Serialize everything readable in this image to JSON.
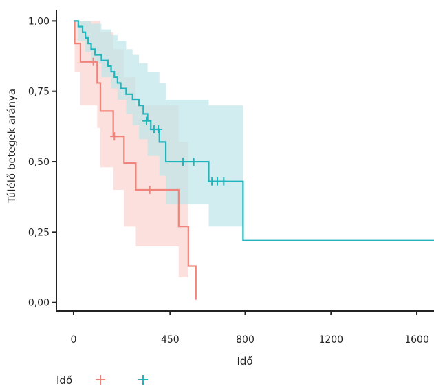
{
  "chart_data": {
    "type": "line",
    "subtype": "kaplan-meier-survival",
    "title": "",
    "xlabel": "Idő",
    "ylabel": "Túlélő betegek aránya",
    "xlim": [
      -80,
      1680
    ],
    "ylim": [
      -0.03,
      1.04
    ],
    "x_ticks": [
      0,
      450,
      800,
      1200,
      1600
    ],
    "x_tick_labels": [
      "0",
      "450",
      "800",
      "1200",
      "1600"
    ],
    "y_ticks": [
      0,
      0.25,
      0.5,
      0.75,
      1.0
    ],
    "y_tick_labels": [
      "0,00",
      "0,25",
      "0,50",
      "0,75",
      "1,00"
    ],
    "grid": false,
    "legend": {
      "title": "Idő",
      "placement": "bottom-left",
      "entries": [
        {
          "symbol": "+",
          "color": "#F0837A"
        },
        {
          "symbol": "+",
          "color": "#1FB5BC"
        }
      ]
    },
    "series": [
      {
        "color": "#F0837A",
        "band_color": "#FBD3CF",
        "steps": [
          {
            "x": 0,
            "y": 1.0
          },
          {
            "x": 5,
            "y": 0.92
          },
          {
            "x": 32,
            "y": 0.855
          },
          {
            "x": 110,
            "y": 0.78
          },
          {
            "x": 125,
            "y": 0.68
          },
          {
            "x": 185,
            "y": 0.59
          },
          {
            "x": 235,
            "y": 0.495
          },
          {
            "x": 290,
            "y": 0.4
          },
          {
            "x": 490,
            "y": 0.27
          },
          {
            "x": 535,
            "y": 0.13
          },
          {
            "x": 570,
            "y": 0.01
          }
        ],
        "end_x": 570,
        "band": [
          {
            "x": 0,
            "lo": 1.0,
            "hi": 1.0
          },
          {
            "x": 5,
            "lo": 0.82,
            "hi": 1.0
          },
          {
            "x": 32,
            "lo": 0.7,
            "hi": 1.0
          },
          {
            "x": 110,
            "lo": 0.62,
            "hi": 1.0
          },
          {
            "x": 125,
            "lo": 0.48,
            "hi": 0.96
          },
          {
            "x": 185,
            "lo": 0.4,
            "hi": 0.9
          },
          {
            "x": 235,
            "lo": 0.27,
            "hi": 0.8
          },
          {
            "x": 290,
            "lo": 0.2,
            "hi": 0.7
          },
          {
            "x": 490,
            "lo": 0.09,
            "hi": 0.57
          },
          {
            "x": 535,
            "lo": 0.09,
            "hi": 0.57
          }
        ],
        "band_end_x": 535,
        "censored": [
          {
            "x": 92,
            "y": 0.855
          },
          {
            "x": 190,
            "y": 0.59
          },
          {
            "x": 355,
            "y": 0.4
          }
        ]
      },
      {
        "color": "#1FB5BC",
        "band_color": "#BFE6E8",
        "steps": [
          {
            "x": 0,
            "y": 1.0
          },
          {
            "x": 22,
            "y": 0.98
          },
          {
            "x": 42,
            "y": 0.96
          },
          {
            "x": 55,
            "y": 0.94
          },
          {
            "x": 68,
            "y": 0.92
          },
          {
            "x": 82,
            "y": 0.9
          },
          {
            "x": 100,
            "y": 0.88
          },
          {
            "x": 130,
            "y": 0.86
          },
          {
            "x": 160,
            "y": 0.84
          },
          {
            "x": 175,
            "y": 0.82
          },
          {
            "x": 190,
            "y": 0.8
          },
          {
            "x": 205,
            "y": 0.78
          },
          {
            "x": 220,
            "y": 0.76
          },
          {
            "x": 245,
            "y": 0.74
          },
          {
            "x": 275,
            "y": 0.72
          },
          {
            "x": 305,
            "y": 0.7
          },
          {
            "x": 325,
            "y": 0.67
          },
          {
            "x": 345,
            "y": 0.645
          },
          {
            "x": 360,
            "y": 0.615
          },
          {
            "x": 400,
            "y": 0.57
          },
          {
            "x": 430,
            "y": 0.5
          },
          {
            "x": 630,
            "y": 0.43
          },
          {
            "x": 790,
            "y": 0.22
          }
        ],
        "end_x": 1680,
        "band": [
          {
            "x": 0,
            "lo": 1.0,
            "hi": 1.0
          },
          {
            "x": 22,
            "lo": 0.93,
            "hi": 1.0
          },
          {
            "x": 55,
            "lo": 0.89,
            "hi": 1.0
          },
          {
            "x": 82,
            "lo": 0.85,
            "hi": 0.99
          },
          {
            "x": 130,
            "lo": 0.8,
            "hi": 0.97
          },
          {
            "x": 175,
            "lo": 0.76,
            "hi": 0.95
          },
          {
            "x": 205,
            "lo": 0.72,
            "hi": 0.93
          },
          {
            "x": 245,
            "lo": 0.67,
            "hi": 0.9
          },
          {
            "x": 275,
            "lo": 0.63,
            "hi": 0.88
          },
          {
            "x": 305,
            "lo": 0.58,
            "hi": 0.85
          },
          {
            "x": 345,
            "lo": 0.52,
            "hi": 0.82
          },
          {
            "x": 400,
            "lo": 0.45,
            "hi": 0.78
          },
          {
            "x": 430,
            "lo": 0.35,
            "hi": 0.72
          },
          {
            "x": 630,
            "lo": 0.27,
            "hi": 0.7
          }
        ],
        "band_end_x": 790,
        "censored": [
          {
            "x": 340,
            "y": 0.645
          },
          {
            "x": 375,
            "y": 0.615
          },
          {
            "x": 395,
            "y": 0.615
          },
          {
            "x": 510,
            "y": 0.5
          },
          {
            "x": 560,
            "y": 0.5
          },
          {
            "x": 645,
            "y": 0.43
          },
          {
            "x": 670,
            "y": 0.43
          },
          {
            "x": 700,
            "y": 0.43
          }
        ]
      }
    ]
  }
}
